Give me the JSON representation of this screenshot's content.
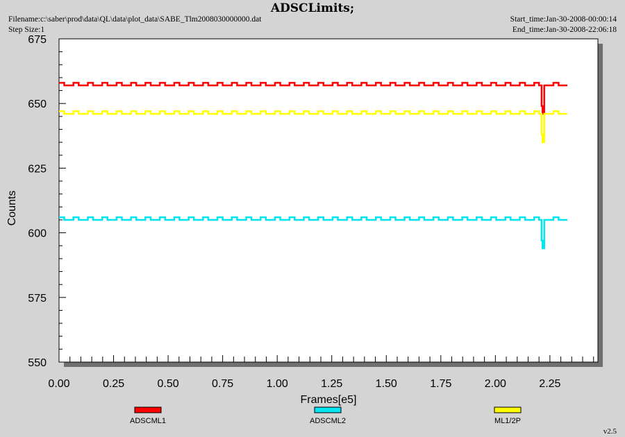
{
  "header": {
    "title": "ADSCLimits;",
    "filename_line": "Filename:c:\\saber\\prod\\data\\QL\\data\\plot_data\\SABE_Tlm2008030000000.dat",
    "step_size_line": "Step Size:1",
    "start_time_line": "Start_time:Jan-30-2008-00:00:14",
    "end_time_line": "End_time:Jan-30-2008-22:06:18"
  },
  "footer": {
    "version": "v2.5"
  },
  "chart_data": {
    "type": "line",
    "title": "ADSCLimits;",
    "xlabel": "Frames[e5]",
    "ylabel": "Counts",
    "xlim": [
      0.0,
      2.47
    ],
    "ylim": [
      550,
      675
    ],
    "xticks": [
      "0.00",
      "0.25",
      "0.50",
      "0.75",
      "1.00",
      "1.25",
      "1.50",
      "1.75",
      "2.00",
      "2.25"
    ],
    "yticks": [
      "550",
      "575",
      "600",
      "625",
      "650",
      "675"
    ],
    "grid": false,
    "legend_position": "bottom",
    "series": [
      {
        "name": "ADSCML1",
        "color": "#ff0000",
        "base": 657,
        "high": 658,
        "dip_x": 2.22,
        "dip_min": 646,
        "x_end": 2.33
      },
      {
        "name": "ADSCML2",
        "color": "#00e5f0",
        "base": 605,
        "high": 606,
        "dip_x": 2.22,
        "dip_min": 594,
        "x_end": 2.33
      },
      {
        "name": "ML1/2P",
        "color": "#ffff00",
        "base": 646,
        "high": 647,
        "dip_x": 2.22,
        "dip_min": 635,
        "x_end": 2.33
      }
    ]
  }
}
